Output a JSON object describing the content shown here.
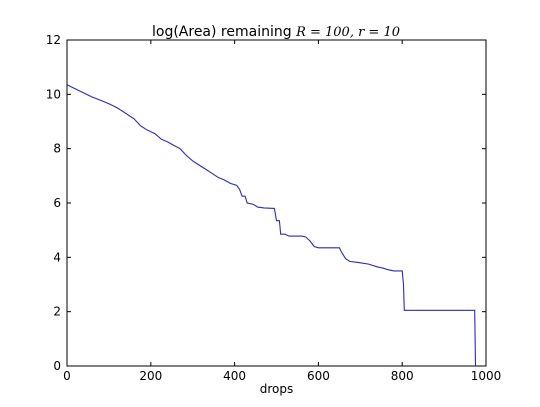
{
  "chart_data": {
    "type": "line",
    "title": "log(Area) remaining",
    "title_math": "R = 100, r = 10",
    "xlabel": "drops",
    "ylabel": "",
    "xlim": [
      0,
      1000
    ],
    "ylim": [
      0,
      12
    ],
    "x_ticks": [
      0,
      200,
      400,
      600,
      800,
      1000
    ],
    "y_ticks": [
      0,
      2,
      4,
      6,
      8,
      10,
      12
    ],
    "grid": false,
    "line_color": "#2b2bb8",
    "series": [
      {
        "values_xy": [
          [
            0,
            10.35
          ],
          [
            20,
            10.2
          ],
          [
            40,
            10.05
          ],
          [
            60,
            9.9
          ],
          [
            80,
            9.78
          ],
          [
            100,
            9.65
          ],
          [
            120,
            9.5
          ],
          [
            140,
            9.3
          ],
          [
            160,
            9.1
          ],
          [
            175,
            8.85
          ],
          [
            190,
            8.7
          ],
          [
            210,
            8.55
          ],
          [
            225,
            8.35
          ],
          [
            240,
            8.25
          ],
          [
            255,
            8.12
          ],
          [
            270,
            8.0
          ],
          [
            285,
            7.75
          ],
          [
            300,
            7.55
          ],
          [
            315,
            7.4
          ],
          [
            330,
            7.25
          ],
          [
            345,
            7.1
          ],
          [
            360,
            6.95
          ],
          [
            375,
            6.85
          ],
          [
            390,
            6.72
          ],
          [
            405,
            6.65
          ],
          [
            412,
            6.5
          ],
          [
            418,
            6.25
          ],
          [
            425,
            6.25
          ],
          [
            430,
            6.0
          ],
          [
            445,
            5.95
          ],
          [
            455,
            5.85
          ],
          [
            470,
            5.82
          ],
          [
            495,
            5.8
          ],
          [
            500,
            5.35
          ],
          [
            507,
            5.35
          ],
          [
            510,
            4.85
          ],
          [
            520,
            4.85
          ],
          [
            530,
            4.78
          ],
          [
            560,
            4.78
          ],
          [
            570,
            4.75
          ],
          [
            580,
            4.6
          ],
          [
            590,
            4.4
          ],
          [
            600,
            4.35
          ],
          [
            650,
            4.35
          ],
          [
            655,
            4.2
          ],
          [
            665,
            3.95
          ],
          [
            675,
            3.85
          ],
          [
            690,
            3.82
          ],
          [
            700,
            3.8
          ],
          [
            720,
            3.75
          ],
          [
            740,
            3.65
          ],
          [
            755,
            3.6
          ],
          [
            765,
            3.55
          ],
          [
            780,
            3.5
          ],
          [
            800,
            3.5
          ],
          [
            803,
            3.0
          ],
          [
            805,
            2.05
          ],
          [
            973,
            2.05
          ],
          [
            975,
            0.0
          ]
        ]
      }
    ]
  }
}
